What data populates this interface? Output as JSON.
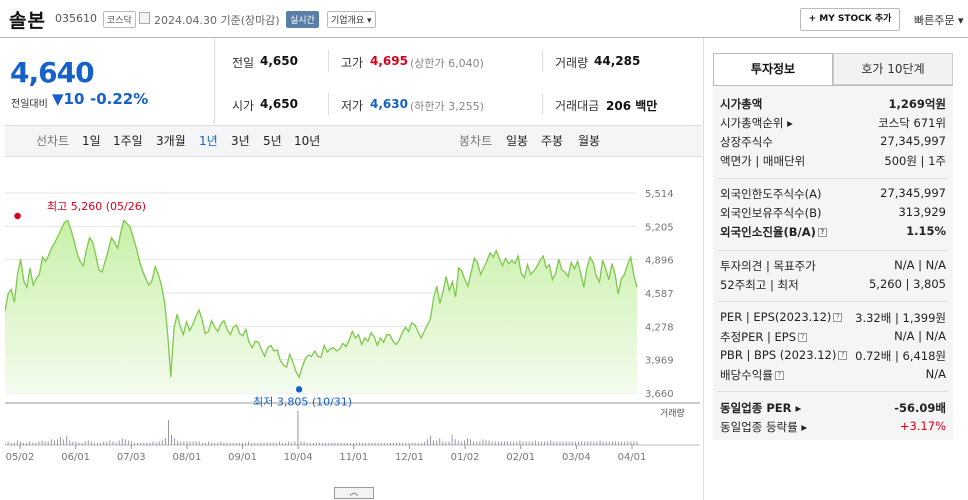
{
  "header": {
    "stock_name": "솔본",
    "stock_code": "035610",
    "market": "코스닥",
    "date_text": "2024.04.30  기준(장마감)",
    "realtime_label": "실시간",
    "company_label": "기업개요 ▾",
    "mystock_label": "+ MY STOCK 추가",
    "quick_order_label": "빠른주문 ▾"
  },
  "summary": {
    "current_price": "4,640",
    "prev_label": "전일대비",
    "change_value": "▼10",
    "change_pct": "-0.22%",
    "prev_close_label": "전일",
    "prev_close": "4,650",
    "high_label": "고가",
    "high": "4,695",
    "upper_limit": "(상한가 6,040)",
    "volume_label": "거래량",
    "volume": "44,285",
    "open_label": "시가",
    "open": "4,650",
    "low_label": "저가",
    "low": "4,630",
    "lower_limit": "(하한가 3,255)",
    "amount_label": "거래대금",
    "amount": "206 백만"
  },
  "periods": {
    "line_label": "선차트",
    "items": [
      "1일",
      "1주일",
      "3개월",
      "1년",
      "3년",
      "5년",
      "10년"
    ],
    "selected": "1년",
    "candle_label": "봉차트",
    "candle_items": [
      "일봉",
      "주봉",
      "월봉"
    ]
  },
  "chart_data": {
    "type": "area",
    "y_ticks": [
      "5,514",
      "5,205",
      "4,896",
      "4,587",
      "4,278",
      "3,969",
      "3,660"
    ],
    "ylim": [
      3660,
      5514
    ],
    "x_ticks": [
      "05/02",
      "06/01",
      "07/03",
      "08/01",
      "09/01",
      "10/04",
      "11/01",
      "12/01",
      "01/02",
      "02/01",
      "03/04",
      "04/01"
    ],
    "max_label": "최고 5,260 (05/26)",
    "min_label": "최저 3,805 (10/31)",
    "volume_legend": "거래량",
    "series": [
      {
        "values": [
          4420,
          4580,
          4620,
          4500,
          4760,
          4900,
          4700,
          4640,
          4820,
          4660,
          4720,
          4760,
          4920,
          4880,
          4940,
          5010,
          5060,
          5120,
          5180,
          5240,
          5260,
          5180,
          5080,
          4960,
          4880,
          4840,
          4980,
          5100,
          5060,
          4940,
          4800,
          4780,
          4880,
          4980,
          5100,
          5060,
          5000,
          5150,
          5260,
          5230,
          5200,
          5100,
          5000,
          4880,
          4790,
          4720,
          4660,
          4700,
          4830,
          4760,
          4660,
          4500,
          4200,
          3810,
          4260,
          4390,
          4280,
          4200,
          4320,
          4240,
          4290,
          4370,
          4430,
          4340,
          4210,
          4230,
          4330,
          4270,
          4230,
          4300,
          4330,
          4250,
          4200,
          4270,
          4290,
          4210,
          4190,
          4250,
          4130,
          4080,
          4140,
          4130,
          4060,
          4000,
          4080,
          4100,
          4050,
          4060,
          3960,
          3920,
          3900,
          4020,
          3950,
          3860,
          3805,
          3900,
          3980,
          4010,
          4000,
          4050,
          4000,
          3990,
          4100,
          4040,
          4070,
          4080,
          4050,
          4070,
          4120,
          4090,
          4150,
          4230,
          4170,
          4200,
          4110,
          4170,
          4140,
          4220,
          4180,
          4100,
          4170,
          4130,
          4200,
          4200,
          4140,
          4110,
          4150,
          4220,
          4270,
          4230,
          4310,
          4290,
          4230,
          4170,
          4230,
          4290,
          4350,
          4540,
          4650,
          4490,
          4600,
          4740,
          4610,
          4690,
          4550,
          4820,
          4790,
          4710,
          4650,
          4780,
          4910,
          4870,
          4760,
          4820,
          4880,
          4960,
          4920,
          4980,
          4910,
          4840,
          4910,
          4860,
          4890,
          4860,
          4930,
          4770,
          4730,
          4850,
          4760,
          4790,
          4830,
          4890,
          4930,
          4820,
          4850,
          4710,
          4770,
          4900,
          4800,
          4780,
          4740,
          4870,
          4810,
          4880,
          4770,
          4640,
          4820,
          4920,
          4870,
          4740,
          4690,
          4890,
          4810,
          4710,
          4860,
          4760,
          4580,
          4720,
          4760,
          4850,
          4920,
          4750,
          4640
        ]
      }
    ],
    "volume_values": [
      2,
      3,
      2,
      2,
      4,
      3,
      2,
      2,
      3,
      2,
      2,
      3,
      4,
      3,
      3,
      5,
      4,
      5,
      7,
      5,
      8,
      4,
      3,
      3,
      2,
      2,
      3,
      4,
      3,
      2,
      2,
      2,
      3,
      3,
      4,
      3,
      2,
      4,
      6,
      5,
      4,
      3,
      2,
      2,
      2,
      2,
      2,
      2,
      3,
      2,
      3,
      4,
      6,
      22,
      9,
      6,
      4,
      3,
      3,
      3,
      3,
      3,
      3,
      3,
      2,
      2,
      3,
      2,
      2,
      2,
      3,
      2,
      2,
      2,
      2,
      2,
      2,
      2,
      2,
      3,
      2,
      2,
      2,
      2,
      2,
      2,
      2,
      2,
      2,
      3,
      2,
      2,
      3,
      2,
      3,
      30,
      3,
      3,
      2,
      2,
      2,
      2,
      2,
      2,
      2,
      2,
      2,
      2,
      2,
      2,
      2,
      2,
      2,
      2,
      2,
      2,
      2,
      2,
      2,
      2,
      2,
      2,
      2,
      2,
      2,
      2,
      2,
      2,
      2,
      2,
      2,
      2,
      2,
      2,
      2,
      2,
      3,
      5,
      8,
      4,
      4,
      6,
      3,
      3,
      3,
      9,
      5,
      4,
      3,
      4,
      6,
      5,
      3,
      3,
      3,
      5,
      4,
      4,
      3,
      3,
      3,
      3,
      3,
      3,
      3,
      3,
      3,
      4,
      3,
      3,
      3,
      3,
      4,
      3,
      3,
      3,
      3,
      4,
      3,
      3,
      3,
      3,
      3,
      3,
      3,
      3,
      3,
      3,
      3,
      3,
      3,
      3,
      3,
      4,
      3,
      3,
      3,
      3,
      3,
      3,
      3,
      3,
      3,
      3,
      3,
      3
    ]
  },
  "invest_tabs": [
    "투자정보",
    "호가 10단계"
  ],
  "invest": {
    "rows1": [
      {
        "k": "시가총액",
        "v": "1,269억원",
        "bold": true
      },
      {
        "k": "시가총액순위 ▸",
        "v": "코스닥 671위"
      },
      {
        "k": "상장주식수",
        "v": "27,345,997"
      },
      {
        "k": "액면가 | 매매단위",
        "v": "500원 | 1주"
      }
    ],
    "rows2": [
      {
        "k": "외국인한도주식수(A)",
        "v": "27,345,997"
      },
      {
        "k": "외국인보유주식수(B)",
        "v": "313,929"
      },
      {
        "k": "외국인소진율(B/A)",
        "v": "1.15%",
        "bold": true
      }
    ],
    "rows3": [
      {
        "k": "투자의견 | 목표주가",
        "v": "N/A | N/A"
      },
      {
        "k": "52주최고 | 최저",
        "v": "5,260 | 3,805"
      }
    ],
    "rows4": [
      {
        "k": "PER | EPS(2023.12)",
        "v": "3.32배 | 1,399원"
      },
      {
        "k": "추정PER | EPS",
        "v": "N/A | N/A"
      },
      {
        "k": "PBR | BPS (2023.12)",
        "v": "0.72배 | 6,418원"
      },
      {
        "k": "배당수익률",
        "v": "N/A"
      }
    ],
    "rows5": [
      {
        "k": "동일업종 PER ▸",
        "v": "-56.09배",
        "bold": true
      },
      {
        "k": "동일업종 등락률 ▸",
        "v": "+3.17%",
        "red": true
      }
    ]
  }
}
